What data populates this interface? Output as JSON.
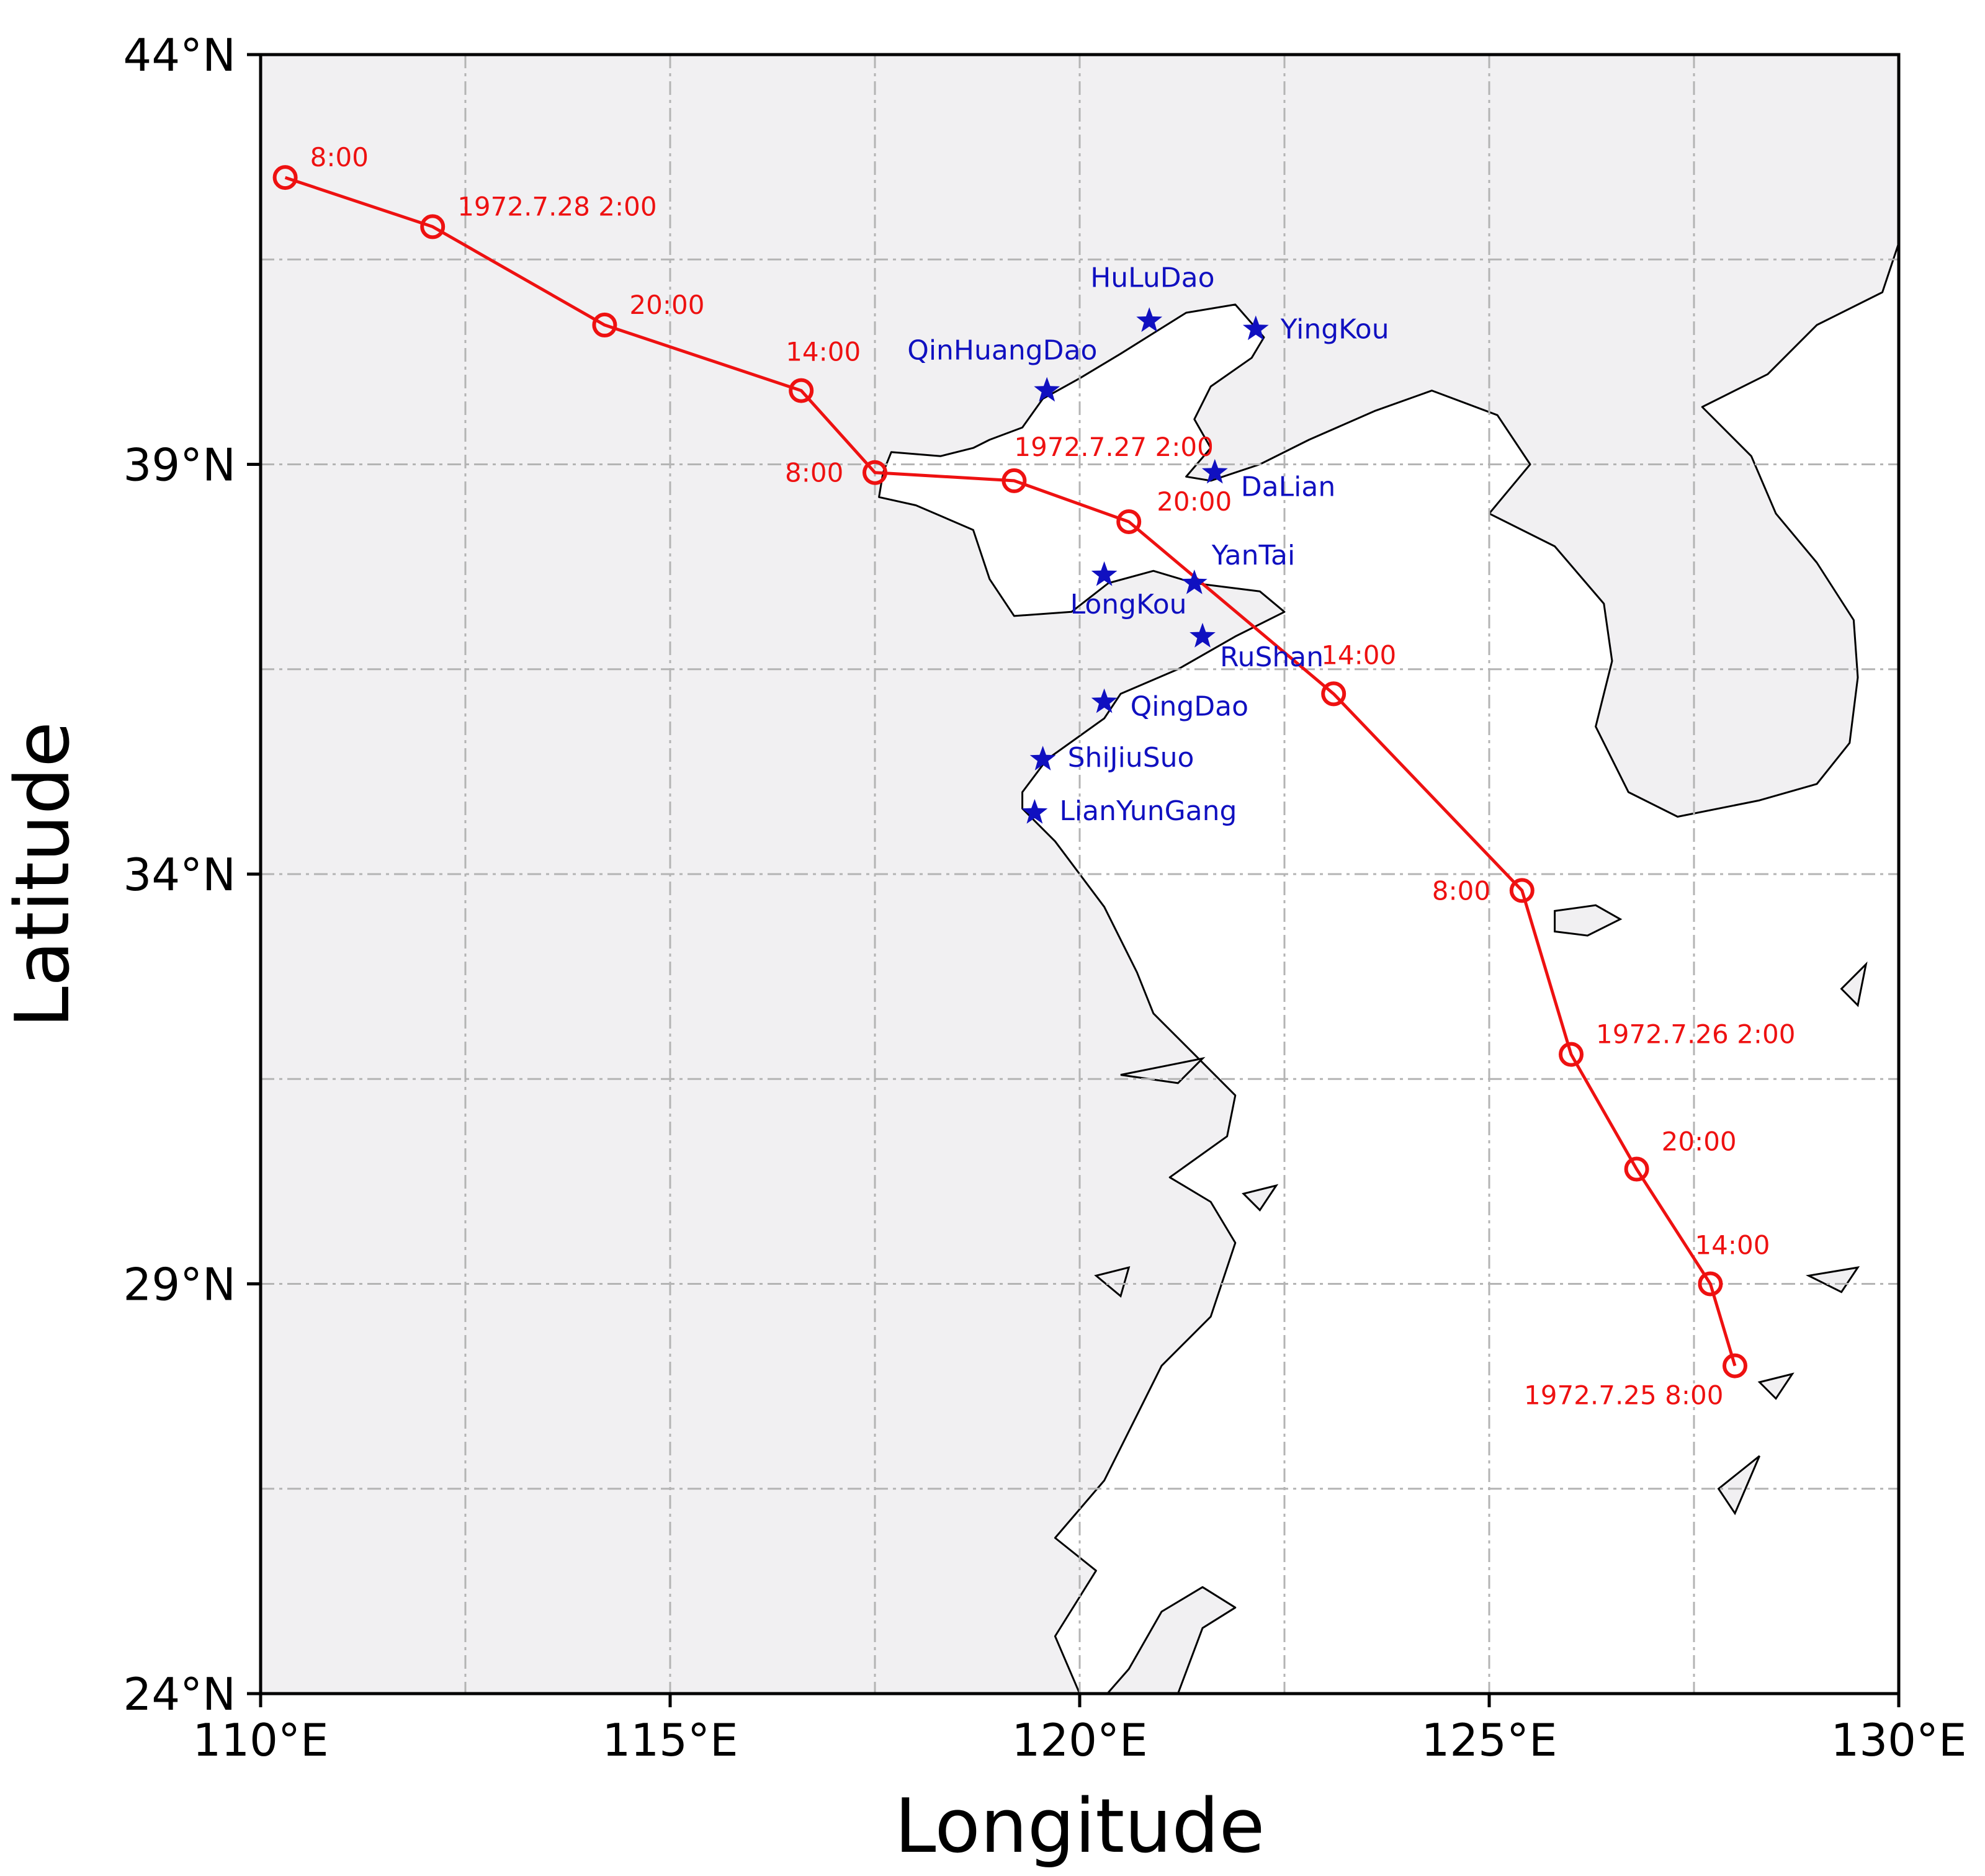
{
  "chart_data": {
    "type": "map",
    "projection": "plate-carree",
    "xlabel": "Longitude",
    "ylabel": "Latitude",
    "xlim": [
      110,
      130
    ],
    "ylim": [
      24,
      44
    ],
    "x_ticks": [
      {
        "value": 110,
        "label": "110°E"
      },
      {
        "value": 115,
        "label": "115°E"
      },
      {
        "value": 120,
        "label": "120°E"
      },
      {
        "value": 125,
        "label": "125°E"
      },
      {
        "value": 130,
        "label": "130°E"
      }
    ],
    "y_ticks": [
      {
        "value": 24,
        "label": "24°N"
      },
      {
        "value": 29,
        "label": "29°N"
      },
      {
        "value": 34,
        "label": "34°N"
      },
      {
        "value": 39,
        "label": "39°N"
      },
      {
        "value": 44,
        "label": "44°N"
      }
    ],
    "gridlines_lon": [
      112.5,
      115,
      117.5,
      120,
      122.5,
      125,
      127.5
    ],
    "gridlines_lat": [
      26.5,
      29,
      31.5,
      34,
      36.5,
      39,
      41.5
    ],
    "grid": true,
    "colors": {
      "track": "#ee1111",
      "station": "#1010c0",
      "grid": "#b4b4b4",
      "land": "#f1f0f2",
      "sea": "#ffffff",
      "coast": "#000000"
    },
    "track": [
      {
        "lon": 128.0,
        "lat": 28.0,
        "label": "1972.7.25 8:00"
      },
      {
        "lon": 127.7,
        "lat": 29.0,
        "label": "14:00"
      },
      {
        "lon": 126.8,
        "lat": 30.4,
        "label": "20:00"
      },
      {
        "lon": 126.0,
        "lat": 31.8,
        "label": "1972.7.26 2:00"
      },
      {
        "lon": 125.4,
        "lat": 33.8,
        "label": "8:00"
      },
      {
        "lon": 123.1,
        "lat": 36.2,
        "label": "14:00"
      },
      {
        "lon": 120.6,
        "lat": 38.3,
        "label": "20:00"
      },
      {
        "lon": 119.2,
        "lat": 38.8,
        "label": "1972.7.27 2:00"
      },
      {
        "lon": 117.5,
        "lat": 38.9,
        "label": "8:00"
      },
      {
        "lon": 116.6,
        "lat": 39.9,
        "label": "14:00"
      },
      {
        "lon": 114.2,
        "lat": 40.7,
        "label": "20:00"
      },
      {
        "lon": 112.1,
        "lat": 41.9,
        "label": "1972.7.28 2:00"
      },
      {
        "lon": 110.3,
        "lat": 42.5,
        "label": "8:00"
      }
    ],
    "stations": [
      {
        "name": "HuLuDao",
        "lon": 120.85,
        "lat": 40.75
      },
      {
        "name": "YingKou",
        "lon": 122.15,
        "lat": 40.65
      },
      {
        "name": "QinHuangDao",
        "lon": 119.6,
        "lat": 39.9
      },
      {
        "name": "DaLian",
        "lon": 121.65,
        "lat": 38.9
      },
      {
        "name": "YanTai",
        "lon": 121.4,
        "lat": 37.55
      },
      {
        "name": "LongKou",
        "lon": 120.3,
        "lat": 37.65
      },
      {
        "name": "RuShan",
        "lon": 121.5,
        "lat": 36.9
      },
      {
        "name": "QingDao",
        "lon": 120.3,
        "lat": 36.1
      },
      {
        "name": "ShiJiuSuo",
        "lon": 119.55,
        "lat": 35.4
      },
      {
        "name": "LianYunGang",
        "lon": 119.45,
        "lat": 34.75
      }
    ],
    "sea_outline": [
      [
        117.7,
        39.15
      ],
      [
        118.3,
        39.1
      ],
      [
        118.7,
        39.2
      ],
      [
        118.9,
        39.3
      ],
      [
        119.3,
        39.45
      ],
      [
        119.55,
        39.8
      ],
      [
        120.0,
        40.05
      ],
      [
        120.5,
        40.35
      ],
      [
        120.9,
        40.6
      ],
      [
        121.3,
        40.85
      ],
      [
        121.9,
        40.95
      ],
      [
        122.25,
        40.55
      ],
      [
        122.1,
        40.3
      ],
      [
        121.6,
        39.95
      ],
      [
        121.4,
        39.55
      ],
      [
        121.6,
        39.2
      ],
      [
        121.3,
        38.85
      ],
      [
        121.6,
        38.8
      ],
      [
        122.2,
        39.0
      ],
      [
        122.8,
        39.3
      ],
      [
        123.6,
        39.65
      ],
      [
        124.3,
        39.9
      ],
      [
        125.1,
        39.6
      ],
      [
        125.5,
        39.0
      ],
      [
        125.0,
        38.4
      ],
      [
        125.8,
        38.0
      ],
      [
        126.4,
        37.3
      ],
      [
        126.5,
        36.6
      ],
      [
        126.3,
        35.8
      ],
      [
        126.7,
        35.0
      ],
      [
        127.3,
        34.7
      ],
      [
        128.3,
        34.9
      ],
      [
        129.0,
        35.1
      ],
      [
        129.4,
        35.6
      ],
      [
        129.5,
        36.4
      ],
      [
        129.45,
        37.1
      ],
      [
        129.0,
        37.8
      ],
      [
        128.5,
        38.4
      ],
      [
        128.2,
        39.1
      ],
      [
        127.6,
        39.7
      ],
      [
        128.4,
        40.1
      ],
      [
        129.0,
        40.7
      ],
      [
        129.8,
        41.1
      ],
      [
        130.0,
        41.7
      ],
      [
        130.0,
        24.0
      ],
      [
        121.2,
        24.0
      ],
      [
        121.5,
        24.8
      ],
      [
        121.9,
        25.05
      ],
      [
        121.5,
        25.3
      ],
      [
        121.0,
        25.0
      ],
      [
        120.6,
        24.3
      ],
      [
        120.25,
        23.9
      ],
      [
        120.0,
        24.0
      ],
      [
        119.7,
        24.7
      ],
      [
        120.2,
        25.5
      ],
      [
        119.7,
        25.9
      ],
      [
        120.3,
        26.6
      ],
      [
        120.7,
        27.4
      ],
      [
        121.0,
        28.0
      ],
      [
        121.6,
        28.6
      ],
      [
        121.9,
        29.5
      ],
      [
        121.6,
        30.0
      ],
      [
        121.1,
        30.3
      ],
      [
        121.8,
        30.8
      ],
      [
        121.9,
        31.3
      ],
      [
        121.4,
        31.8
      ],
      [
        120.9,
        32.3
      ],
      [
        120.7,
        32.8
      ],
      [
        120.3,
        33.6
      ],
      [
        119.7,
        34.4
      ],
      [
        119.3,
        34.8
      ],
      [
        119.3,
        35.0
      ],
      [
        119.6,
        35.4
      ],
      [
        120.3,
        35.9
      ],
      [
        120.5,
        36.2
      ],
      [
        121.2,
        36.5
      ],
      [
        121.9,
        36.9
      ],
      [
        122.5,
        37.2
      ],
      [
        122.2,
        37.45
      ],
      [
        121.4,
        37.55
      ],
      [
        120.9,
        37.7
      ],
      [
        120.35,
        37.55
      ],
      [
        119.9,
        37.2
      ],
      [
        119.2,
        37.15
      ],
      [
        118.9,
        37.6
      ],
      [
        118.7,
        38.2
      ],
      [
        118.0,
        38.5
      ],
      [
        117.55,
        38.6
      ],
      [
        117.6,
        38.9
      ],
      [
        117.7,
        39.15
      ]
    ],
    "islands": [
      [
        [
          125.8,
          33.55
        ],
        [
          126.3,
          33.62
        ],
        [
          126.6,
          33.45
        ],
        [
          126.2,
          33.25
        ],
        [
          125.8,
          33.3
        ],
        [
          125.8,
          33.55
        ]
      ],
      [
        [
          120.2,
          29.1
        ],
        [
          120.6,
          29.2
        ],
        [
          120.5,
          28.85
        ],
        [
          120.2,
          29.1
        ]
      ],
      [
        [
          120.5,
          31.55
        ],
        [
          121.5,
          31.75
        ],
        [
          121.2,
          31.45
        ],
        [
          120.5,
          31.55
        ]
      ],
      [
        [
          128.9,
          29.1
        ],
        [
          129.5,
          29.2
        ],
        [
          129.3,
          28.9
        ],
        [
          128.9,
          29.1
        ]
      ],
      [
        [
          128.3,
          27.8
        ],
        [
          128.7,
          27.9
        ],
        [
          128.5,
          27.6
        ],
        [
          128.3,
          27.8
        ]
      ],
      [
        [
          127.8,
          26.5
        ],
        [
          128.3,
          26.9
        ],
        [
          128.0,
          26.2
        ],
        [
          127.8,
          26.5
        ]
      ],
      [
        [
          129.3,
          32.6
        ],
        [
          129.6,
          32.9
        ],
        [
          129.5,
          32.4
        ],
        [
          129.3,
          32.6
        ]
      ],
      [
        [
          122.0,
          30.1
        ],
        [
          122.4,
          30.2
        ],
        [
          122.2,
          29.9
        ],
        [
          122.0,
          30.1
        ]
      ]
    ]
  }
}
